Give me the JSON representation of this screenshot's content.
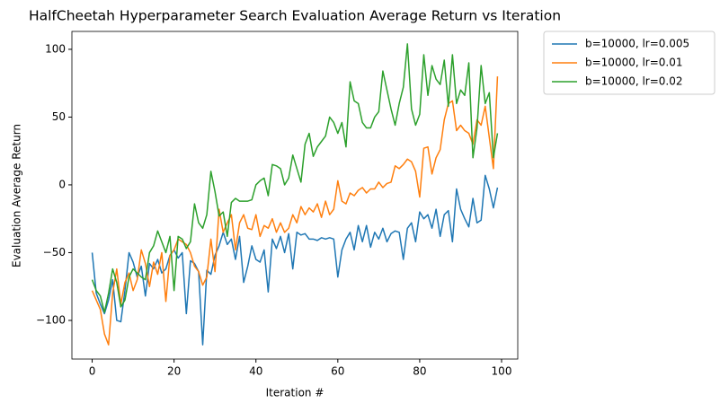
{
  "chart_data": {
    "type": "line",
    "title": "HalfCheetah Hyperparameter Search Evaluation Average Return vs Iteration",
    "xlabel": "Iteration #",
    "ylabel": "Evaluation Average Return",
    "x": [
      0,
      1,
      2,
      3,
      4,
      5,
      6,
      7,
      8,
      9,
      10,
      11,
      12,
      13,
      14,
      15,
      16,
      17,
      18,
      19,
      20,
      21,
      22,
      23,
      24,
      25,
      26,
      27,
      28,
      29,
      30,
      31,
      32,
      33,
      34,
      35,
      36,
      37,
      38,
      39,
      40,
      41,
      42,
      43,
      44,
      45,
      46,
      47,
      48,
      49,
      50,
      51,
      52,
      53,
      54,
      55,
      56,
      57,
      58,
      59,
      60,
      61,
      62,
      63,
      64,
      65,
      66,
      67,
      68,
      69,
      70,
      71,
      72,
      73,
      74,
      75,
      76,
      77,
      78,
      79,
      80,
      81,
      82,
      83,
      84,
      85,
      86,
      87,
      88,
      89,
      90,
      91,
      92,
      93,
      94,
      95,
      96,
      97,
      98,
      99
    ],
    "series": [
      {
        "name": "b=10000, lr=0.005",
        "color": "#1f77b4",
        "values": [
          -50,
          -80,
          -88,
          -95,
          -85,
          -70,
          -100,
          -101,
          -78,
          -50,
          -57,
          -68,
          -60,
          -82,
          -58,
          -62,
          -55,
          -65,
          -62,
          -52,
          -48,
          -54,
          -50,
          -95,
          -56,
          -58,
          -64,
          -118,
          -63,
          -66,
          -52,
          -45,
          -35,
          -44,
          -40,
          -55,
          -38,
          -72,
          -60,
          -45,
          -55,
          -57,
          -48,
          -79,
          -40,
          -47,
          -38,
          -50,
          -36,
          -62,
          -35,
          -37,
          -36,
          -40,
          -40,
          -41,
          -39,
          -40,
          -39,
          -40,
          -68,
          -48,
          -40,
          -35,
          -48,
          -30,
          -42,
          -30,
          -46,
          -35,
          -40,
          -32,
          -42,
          -36,
          -34,
          -35,
          -55,
          -32,
          -28,
          -42,
          -20,
          -25,
          -22,
          -32,
          -18,
          -38,
          -22,
          -19,
          -42,
          -3,
          -18,
          -25,
          -31,
          -10,
          -28,
          -26,
          7,
          -3,
          -17,
          -2
        ]
      },
      {
        "name": "b=10000, lr=0.01",
        "color": "#ff7f0e",
        "values": [
          -78,
          -85,
          -92,
          -110,
          -118,
          -80,
          -62,
          -88,
          -72,
          -65,
          -78,
          -70,
          -48,
          -58,
          -75,
          -57,
          -66,
          -50,
          -86,
          -52,
          -48,
          -40,
          -42,
          -44,
          -50,
          -60,
          -64,
          -74,
          -68,
          -40,
          -64,
          -18,
          -35,
          -28,
          -22,
          -48,
          -28,
          -22,
          -32,
          -33,
          -22,
          -38,
          -30,
          -32,
          -25,
          -35,
          -28,
          -35,
          -32,
          -22,
          -28,
          -16,
          -22,
          -17,
          -20,
          -14,
          -24,
          -12,
          -22,
          -18,
          3,
          -12,
          -14,
          -6,
          -8,
          -4,
          -2,
          -6,
          -3,
          -3,
          2,
          -2,
          1,
          2,
          14,
          12,
          15,
          19,
          17,
          10,
          -9,
          27,
          28,
          8,
          20,
          26,
          48,
          60,
          62,
          40,
          44,
          40,
          38,
          30,
          48,
          44,
          58,
          35,
          12,
          80
        ]
      },
      {
        "name": "b=10000, lr=0.02",
        "color": "#2ca02c",
        "values": [
          -70,
          -78,
          -82,
          -94,
          -80,
          -62,
          -72,
          -90,
          -85,
          -68,
          -62,
          -65,
          -68,
          -70,
          -50,
          -45,
          -34,
          -42,
          -50,
          -38,
          -78,
          -38,
          -40,
          -47,
          -42,
          -14,
          -28,
          -32,
          -22,
          10,
          -5,
          -23,
          -20,
          -38,
          -13,
          -10,
          -12,
          -12,
          -12,
          -11,
          0,
          3,
          5,
          -8,
          15,
          14,
          12,
          0,
          5,
          22,
          12,
          2,
          30,
          38,
          21,
          28,
          32,
          36,
          50,
          46,
          38,
          46,
          28,
          76,
          62,
          60,
          46,
          42,
          42,
          50,
          54,
          84,
          70,
          56,
          44,
          60,
          72,
          104,
          56,
          44,
          52,
          96,
          66,
          88,
          78,
          74,
          92,
          58,
          96,
          60,
          70,
          66,
          90,
          20,
          42,
          88,
          60,
          68,
          20,
          38
        ]
      }
    ],
    "xlim": [
      -4.95,
      103.95
    ],
    "ylim": [
      -128.5,
      113.2
    ],
    "xticks": [
      0,
      20,
      40,
      60,
      80,
      100
    ],
    "yticks": [
      {
        "value": -100,
        "label": "−100"
      },
      {
        "value": -50,
        "label": "−50"
      },
      0,
      50,
      100
    ],
    "legend": "outside-upper-right"
  }
}
